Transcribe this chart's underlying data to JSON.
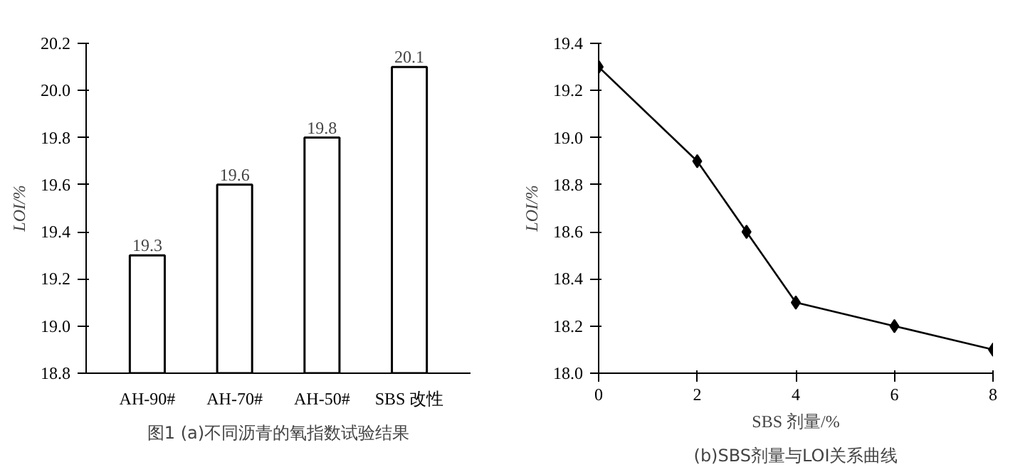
{
  "chart_data": [
    {
      "type": "bar",
      "categories": [
        "AH-90#",
        "AH-70#",
        "AH-50#",
        "SBS 改性"
      ],
      "values": [
        19.3,
        19.6,
        19.8,
        20.1
      ],
      "color": "#ffffff",
      "data_labels": true,
      "ylabel": "LOI/%",
      "ylim": [
        18.8,
        20.2
      ],
      "yticks": [
        18.8,
        {
          "value": 19,
          "label": "19.0"
        },
        19.2,
        19.4,
        19.6,
        19.8,
        {
          "value": 20,
          "label": "20.0"
        },
        20.2
      ],
      "annotations": [
        "图1 (a)不同沥青的氧指数试验结果"
      ]
    },
    {
      "type": "line",
      "x": [
        0,
        2,
        3,
        4,
        6,
        8
      ],
      "values": [
        19.3,
        18.9,
        18.6,
        18.3,
        18.2,
        18.1
      ],
      "color": "#000000",
      "marker": "diamond",
      "line_style": "solid",
      "xlabel": "SBS 剂量/%",
      "ylabel": "LOI/%",
      "xlim": [
        0,
        8
      ],
      "xticks": [
        0,
        2,
        4,
        6,
        8
      ],
      "ylim": [
        18.0,
        19.4
      ],
      "yticks": [
        {
          "value": 18,
          "label": "18.0"
        },
        18.2,
        18.4,
        18.6,
        18.8,
        {
          "value": 19,
          "label": "19.0"
        },
        19.2,
        19.4
      ],
      "annotations": [
        "(b)SBS剂量与LOI关系曲线"
      ]
    }
  ]
}
